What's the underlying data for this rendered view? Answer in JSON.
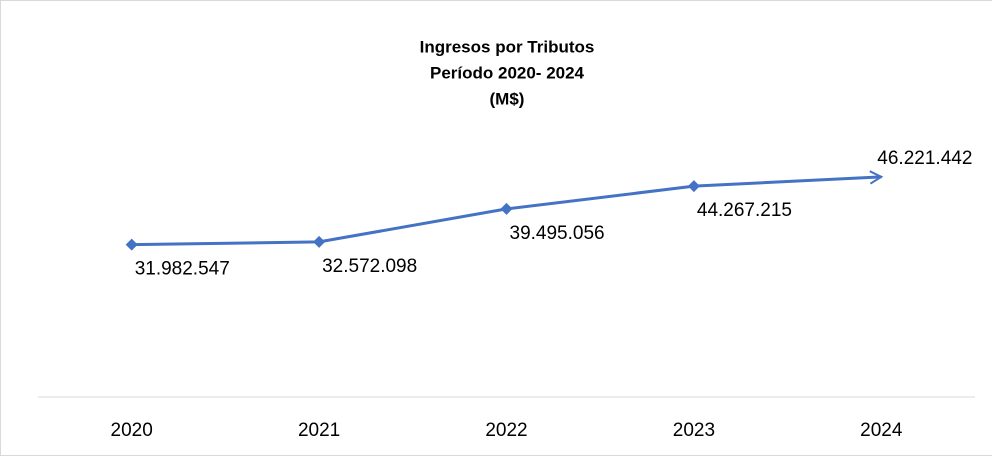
{
  "chart_data": {
    "type": "line",
    "title": "Ingresos por Tributos",
    "subtitle": "Período 2020- 2024",
    "unit_label": "(M$)",
    "categories": [
      "2020",
      "2021",
      "2022",
      "2023",
      "2024"
    ],
    "series": [
      {
        "name": "Ingresos",
        "color": "#4472c4",
        "values": [
          31982547,
          32572098,
          39495056,
          44267215,
          46221442
        ],
        "value_labels": [
          "31.982.547",
          "32.572.098",
          "39.495.056",
          "44.267.215",
          "46.221.442"
        ]
      }
    ],
    "ylim": [
      0,
      80000000
    ]
  }
}
